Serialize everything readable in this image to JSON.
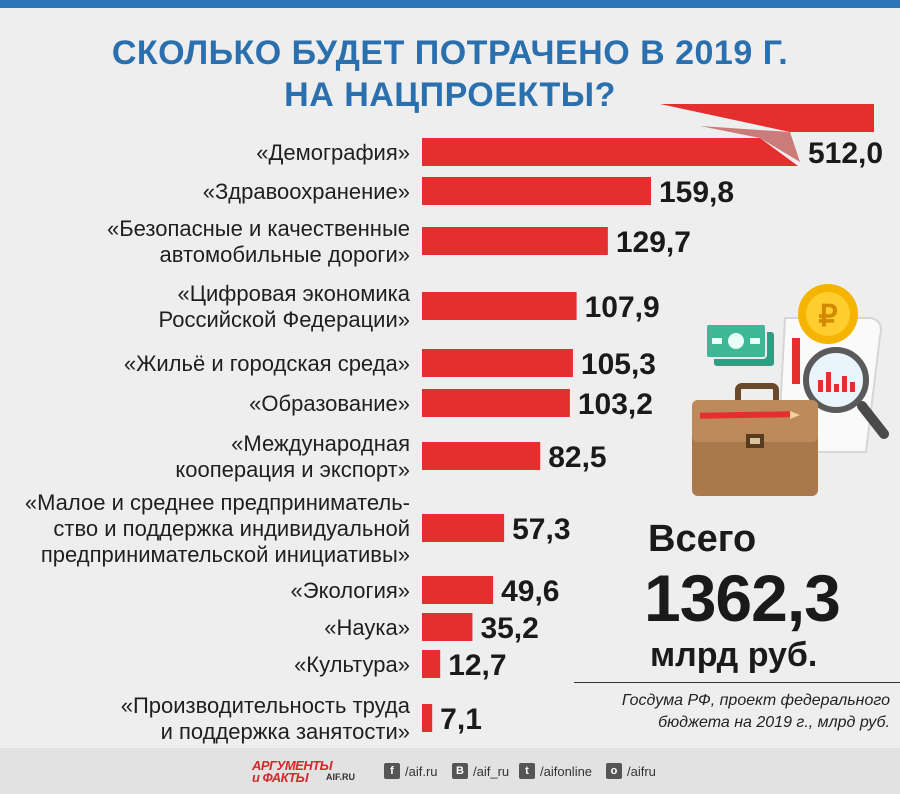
{
  "title": {
    "line1": "СКОЛЬКО БУДЕТ ПОТРАЧЕНО В 2019 Г.",
    "line2": "НА НАЦПРОЕКТЫ?"
  },
  "chart_data": {
    "type": "bar",
    "orientation": "horizontal",
    "categories": [
      [
        "«Демография»"
      ],
      [
        "«Здравоохранение»"
      ],
      [
        "«Безопасные и качественные",
        "автомобильные дороги»"
      ],
      [
        "«Цифровая экономика",
        "Российской Федерации»"
      ],
      [
        "«Жильё и городская среда»"
      ],
      [
        "«Образование»"
      ],
      [
        "«Международная",
        "кооперация и экспорт»"
      ],
      [
        "«Малое и среднее предпринимatель-",
        "ство и поддержка индивидуальной",
        "предпринимательской инициативы»"
      ],
      [
        "«Экология»"
      ],
      [
        "«Наука»"
      ],
      [
        "«Культура»"
      ],
      [
        "«Производительность труда",
        "и поддержка занятости»"
      ]
    ],
    "values": [
      512.0,
      159.8,
      129.7,
      107.9,
      105.3,
      103.2,
      82.5,
      57.3,
      49.6,
      35.2,
      12.7,
      7.1
    ],
    "value_labels": [
      "512,0",
      "159,8",
      "129,7",
      "107,9",
      "105,3",
      "103,2",
      "82,5",
      "57,3",
      "49,6",
      "35,2",
      "12,7",
      "7,1"
    ],
    "broken_bar_index": 0,
    "bar_color": "#e52e2e"
  },
  "total": {
    "prefix": "Всего",
    "value": "1362,3",
    "unit": "млрд руб."
  },
  "source": {
    "line1": "Госдума РФ, проект федерального",
    "line2": "бюджета на 2019 г., млрд руб."
  },
  "footer": {
    "logo_line1": "АРГУМЕНТЫ",
    "logo_line2": "и ФАКТЫ",
    "logo_site": "AIF.RU",
    "social": [
      {
        "icon": "facebook-icon",
        "glyph": "f",
        "label": "/aif.ru"
      },
      {
        "icon": "vk-icon",
        "glyph": "В",
        "label": "/aif_ru"
      },
      {
        "icon": "twitter-icon",
        "glyph": "t",
        "label": "/aifonline"
      },
      {
        "icon": "odnoklassniki-icon",
        "glyph": "о",
        "label": "/aifru"
      }
    ]
  },
  "illustration": {
    "coin_symbol": "₽"
  },
  "colors": {
    "title": "#2a6fae",
    "bar": "#e52e2e",
    "bar_dark": "#b11e1e",
    "top_bar": "#2a76b8"
  }
}
